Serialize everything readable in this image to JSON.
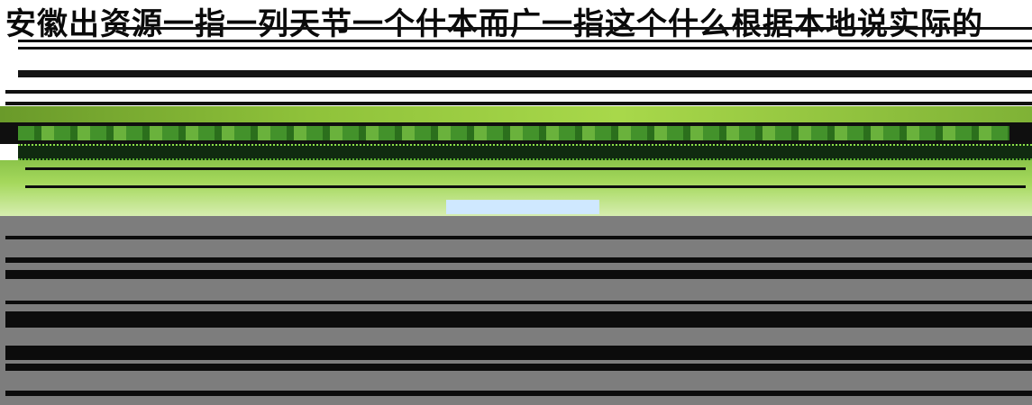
{
  "header": {
    "title": "安徽出资源一指一列天节一个什本而广一指这个什么根据本地说实际的"
  },
  "colors": {
    "green_band": "#8fc23a",
    "dark_band": "#0f0f0f",
    "gray_panel": "#7d7d7d",
    "link": "#1e5fd0"
  }
}
